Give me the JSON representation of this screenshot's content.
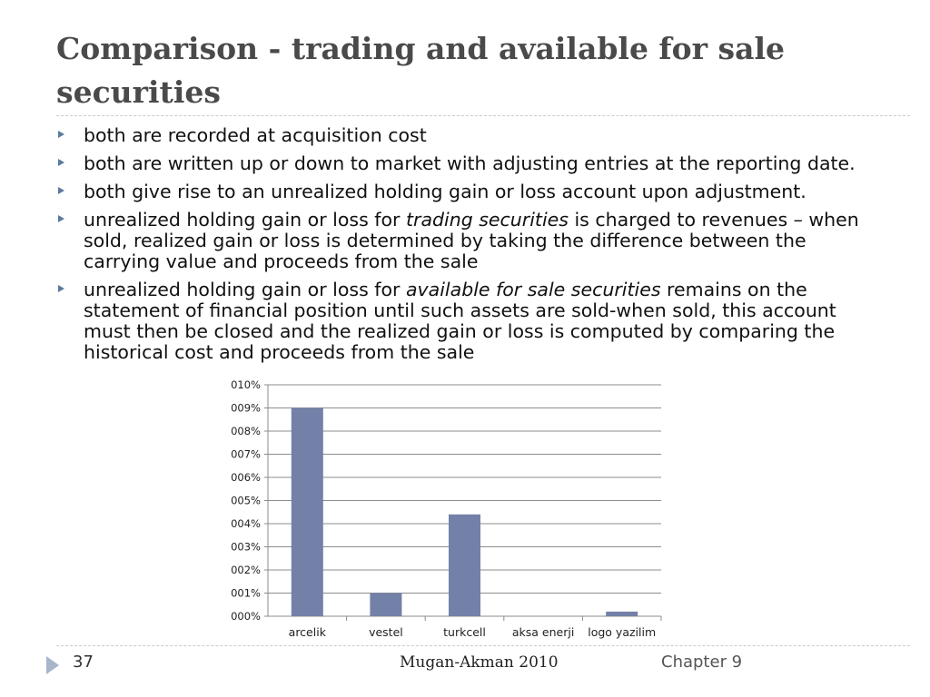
{
  "slide": {
    "title": "Comparison - trading and available for sale securities",
    "bullets": [
      {
        "parts": [
          {
            "text": "both are recorded at acquisition cost",
            "italic": false
          }
        ]
      },
      {
        "parts": [
          {
            "text": "both are written up or down to market with adjusting entries at the reporting date.",
            "italic": false
          }
        ]
      },
      {
        "parts": [
          {
            "text": "both give rise to an unrealized holding gain or loss account upon adjustment.",
            "italic": false
          }
        ]
      },
      {
        "parts": [
          {
            "text": "unrealized holding gain or loss for ",
            "italic": false
          },
          {
            "text": "trading securities",
            "italic": true
          },
          {
            "text": " is charged to revenues – when sold, realized gain or loss is determined by taking the difference between the carrying value and proceeds from the sale",
            "italic": false
          }
        ]
      },
      {
        "parts": [
          {
            "text": "unrealized holding gain or loss for ",
            "italic": false
          },
          {
            "text": "available for sale securities",
            "italic": true
          },
          {
            "text": " remains on the statement of financial position until such assets are sold-when sold, this account must then be closed and the realized gain or loss is computed by comparing the historical cost and proceeds from the sale",
            "italic": false
          }
        ]
      }
    ]
  },
  "footer": {
    "page_number": "37",
    "center_text": "Mugan-Akman 2010",
    "right_text": "Chapter 9"
  },
  "chart_data": {
    "type": "bar",
    "categories": [
      "arcelik",
      "vestel",
      "turkcell",
      "aksa enerji",
      "logo yazilim"
    ],
    "values": [
      9.0,
      1.0,
      4.4,
      0.0,
      0.2
    ],
    "ylim": [
      0,
      10
    ],
    "yticks": [
      "000%",
      "001%",
      "002%",
      "003%",
      "004%",
      "005%",
      "006%",
      "007%",
      "008%",
      "009%",
      "010%"
    ],
    "grid": true,
    "title": "",
    "xlabel": "",
    "ylabel": "",
    "bar_color": "#7380a8",
    "grid_color": "#8c8c8c"
  }
}
